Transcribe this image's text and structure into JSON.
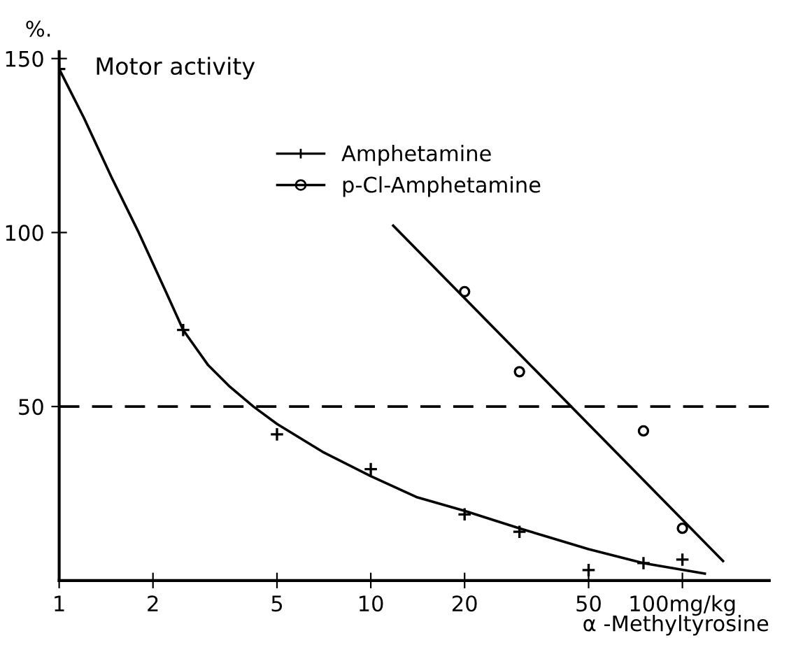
{
  "chart_data": {
    "type": "scatter",
    "title": "Motor activity",
    "xlabel": "α -Methyltyrosine",
    "ylabel": "%.",
    "log": "x",
    "xlim": [
      1,
      190
    ],
    "ylim": [
      0,
      152
    ],
    "xticks": [
      1,
      2,
      5,
      10,
      20,
      50,
      {
        "value": 100,
        "label": "100mg/kg"
      }
    ],
    "yticks": [
      50,
      100,
      150
    ],
    "grid": false,
    "legend": "top",
    "series": [
      {
        "name": "Amphetamine",
        "marker": "cross",
        "color": "#000000",
        "x": [
          1,
          2.5,
          5,
          10,
          20,
          30,
          50,
          75,
          100
        ],
        "values": [
          147,
          72,
          42,
          32,
          19,
          14,
          3,
          5,
          6
        ]
      },
      {
        "name": "p-Cl-Amphetamine",
        "marker": "circle",
        "color": "#000000",
        "x": [
          20,
          30,
          75,
          100
        ],
        "values": [
          83,
          60,
          43,
          15
        ]
      },
      {
        "type": "line",
        "marker": "none",
        "line_style": "solid",
        "color": "#000000",
        "x": [
          1,
          1.2,
          1.47,
          1.8,
          2.2,
          2.5,
          3,
          3.5,
          4.2,
          5,
          7,
          10,
          14,
          20,
          30,
          50,
          75,
          118
        ],
        "values": [
          147,
          133,
          116,
          100,
          83,
          72,
          62,
          56,
          50,
          45,
          37,
          30,
          24,
          20,
          15,
          9,
          5,
          2
        ]
      },
      {
        "type": "line",
        "marker": "none",
        "line_style": "solid",
        "color": "#000000",
        "x": [
          11.8,
          135
        ],
        "values": [
          102,
          5.6
        ]
      }
    ],
    "ref_lines": [
      {
        "axis": "y",
        "value": 50,
        "line_style": "dashed",
        "color": "#000000"
      }
    ]
  }
}
